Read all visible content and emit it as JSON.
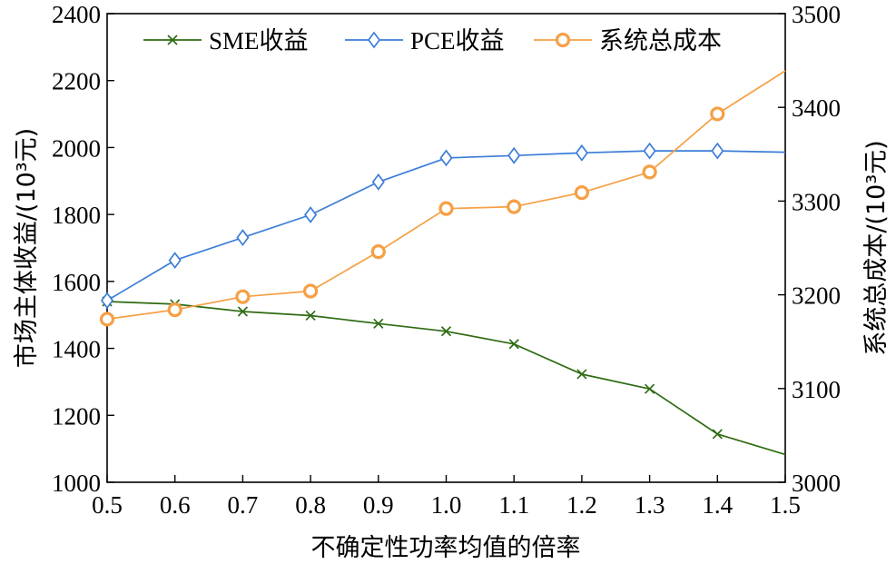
{
  "chart_data": {
    "type": "line",
    "title": "",
    "xlabel": "不确定性功率均值的倍率",
    "ylabel_left": "市场主体收益/(10³元)",
    "ylabel_right": "系统总成本/(10³元)",
    "x": [
      0.5,
      0.6,
      0.7,
      0.8,
      0.9,
      1.0,
      1.1,
      1.2,
      1.3,
      1.4,
      1.5
    ],
    "x_tick_labels": [
      "0.5",
      "0.6",
      "0.7",
      "0.8",
      "0.9",
      "1.0",
      "1.1",
      "1.2",
      "1.3",
      "1.4",
      "1.5"
    ],
    "xlim": [
      0.5,
      1.5
    ],
    "ylim_left": [
      1000,
      2400
    ],
    "ylim_right": [
      3000,
      3500
    ],
    "y_left_ticks": [
      1000,
      1200,
      1400,
      1600,
      1800,
      2000,
      2200,
      2400
    ],
    "y_right_ticks": [
      3000,
      3100,
      3200,
      3300,
      3400,
      3500
    ],
    "legend_position": "top",
    "series": [
      {
        "name": "SME收益",
        "axis": "left",
        "color": "#2e6b12",
        "marker": "x",
        "marker_x": [
          0.5,
          0.6,
          0.7,
          0.8,
          0.9,
          1.0,
          1.1,
          1.2,
          1.3,
          1.4
        ],
        "x": [
          0.5,
          0.6,
          0.7,
          0.8,
          0.9,
          1.0,
          1.1,
          1.2,
          1.3,
          1.4,
          1.5
        ],
        "values": [
          1540,
          1532,
          1510,
          1498,
          1474,
          1451,
          1413,
          1323,
          1279,
          1144,
          1083
        ]
      },
      {
        "name": "PCE收益",
        "axis": "left",
        "color": "#3b7dd8",
        "marker": "diamond",
        "marker_x": [
          0.5,
          0.6,
          0.7,
          0.8,
          0.9,
          1.0,
          1.1,
          1.2,
          1.3,
          1.4
        ],
        "x": [
          0.5,
          0.6,
          0.7,
          0.8,
          0.9,
          1.0,
          1.1,
          1.2,
          1.3,
          1.4,
          1.5
        ],
        "values": [
          1543,
          1663,
          1731,
          1799,
          1897,
          1969,
          1976,
          1984,
          1990,
          1990,
          1986
        ]
      },
      {
        "name": "系统总成本",
        "axis": "right",
        "color": "#f5a045",
        "marker": "circle",
        "marker_x": [
          0.5,
          0.6,
          0.7,
          0.8,
          0.9,
          1.0,
          1.1,
          1.2,
          1.3,
          1.4
        ],
        "x": [
          0.5,
          0.6,
          0.7,
          0.8,
          0.9,
          1.0,
          1.1,
          1.2,
          1.3,
          1.4,
          1.5
        ],
        "values": [
          3174,
          3184,
          3198,
          3204,
          3246,
          3292,
          3294,
          3309,
          3331,
          3393,
          3439
        ]
      }
    ]
  }
}
